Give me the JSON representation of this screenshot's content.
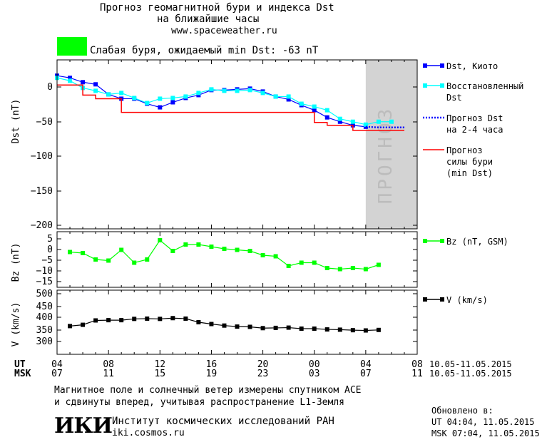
{
  "header": {
    "title_line1": "Прогноз геомагнитной бури и индекса Dst",
    "title_line2": "на ближайшие часы",
    "url": "www.spaceweather.ru",
    "status_color": "#00ff00",
    "status_text": "Слабая буря, ожидаемый min Dst: -63 nT"
  },
  "chart_data": [
    {
      "type": "line",
      "ylabel": "Dst (nT)",
      "ylim": [
        -200,
        35
      ],
      "yticks": [
        "0",
        "-50",
        "-100",
        "-150",
        "-200"
      ],
      "xlim": [
        4,
        32
      ],
      "forecast_shade": {
        "x_from": 28,
        "x_to": 32,
        "label": "ПРОГНОЗ",
        "color": "#d3d3d3"
      },
      "series": [
        {
          "name": "Dst, Киото",
          "color": "#0000ff",
          "marker": "square",
          "x": [
            4,
            5,
            6,
            7,
            8,
            9,
            10,
            11,
            12,
            13,
            14,
            15,
            16,
            17,
            18,
            19,
            20,
            21,
            22,
            23,
            24,
            25,
            26,
            27,
            28
          ],
          "y": [
            13,
            10,
            4,
            1,
            -13,
            -19,
            -19,
            -26,
            -31,
            -24,
            -18,
            -14,
            -7,
            -7,
            -6,
            -5,
            -9,
            -16,
            -20,
            -28,
            -35,
            -45,
            -51,
            -56,
            -58
          ]
        },
        {
          "name": "Восстановленный Dst",
          "color": "#00ffff",
          "marker": "square",
          "x": [
            4,
            5,
            6,
            7,
            8,
            9,
            10,
            11,
            12,
            13,
            14,
            15,
            16,
            17,
            18,
            19,
            20,
            21,
            22,
            23,
            24,
            25,
            26,
            27,
            28,
            29,
            30
          ],
          "y": [
            10,
            6,
            -4,
            -8,
            -13,
            -11,
            -18,
            -25,
            -19,
            -18,
            -16,
            -11,
            -6,
            -8,
            -8,
            -7,
            -11,
            -16,
            -16,
            -26,
            -30,
            -35,
            -47,
            -51,
            -55,
            -51,
            -51
          ]
        },
        {
          "name": "Прогноз Dst на 2-4 часа",
          "color": "#0000ff",
          "dashed": true,
          "x": [
            28,
            29,
            30,
            31
          ],
          "y": [
            -58,
            -59,
            -59,
            -59
          ]
        },
        {
          "name": "Прогноз силы бури (min Dst)",
          "color": "#ff0000",
          "step": true,
          "x": [
            4,
            5,
            6,
            7,
            8,
            9,
            10,
            11,
            12,
            13,
            14,
            15,
            16,
            17,
            18,
            19,
            20,
            21,
            22,
            23,
            24,
            25,
            26,
            27,
            28,
            29,
            30,
            31
          ],
          "y": [
            0,
            0,
            -14,
            -19,
            -19,
            -38,
            -38,
            -38,
            -38,
            -38,
            -38,
            -38,
            -38,
            -38,
            -38,
            -38,
            -38,
            -38,
            -38,
            -38,
            -52,
            -56,
            -56,
            -63,
            -63,
            -63,
            -63,
            -63
          ]
        }
      ]
    },
    {
      "type": "line",
      "ylabel": "Bz (nT)",
      "ylim": [
        -18,
        8
      ],
      "yticks": [
        "5",
        "0",
        "-5",
        "-10",
        "-15"
      ],
      "xlim": [
        4,
        32
      ],
      "series": [
        {
          "name": "Bz (nT, GSM)",
          "color": "#00ff00",
          "marker": "square",
          "x": [
            5,
            6,
            7,
            8,
            9,
            10,
            11,
            12,
            13,
            14,
            15,
            16,
            17,
            18,
            19,
            20,
            21,
            22,
            23,
            24,
            25,
            26,
            27,
            28,
            29
          ],
          "y": [
            -1.5,
            -2,
            -5,
            -5.5,
            -0.5,
            -6.5,
            -5,
            4,
            -1,
            2,
            2,
            1,
            0,
            -0.5,
            -1,
            -3,
            -3.5,
            -8,
            -6.5,
            -6.5,
            -9,
            -9.5,
            -9,
            -9.5,
            -7.5
          ]
        }
      ]
    },
    {
      "type": "line",
      "ylabel": "V (km/s)",
      "ylim": [
        260,
        510
      ],
      "yticks": [
        "500",
        "450",
        "400",
        "350",
        "300"
      ],
      "xlim": [
        4,
        32
      ],
      "x_ticks_ut": [
        "04",
        "08",
        "12",
        "16",
        "20",
        "00",
        "04",
        "08"
      ],
      "x_ticks_msk": [
        "07",
        "11",
        "15",
        "19",
        "23",
        "03",
        "07",
        "11"
      ],
      "x_axis_ut_label": "UT",
      "x_axis_msk_label": "MSK",
      "date_range": "10.05-11.05.2015",
      "series": [
        {
          "name": "V (km/s)",
          "color": "#000000",
          "marker": "square",
          "x": [
            5,
            6,
            7,
            8,
            9,
            10,
            11,
            12,
            13,
            14,
            15,
            16,
            17,
            18,
            19,
            20,
            21,
            22,
            23,
            24,
            25,
            26,
            27,
            28,
            29
          ],
          "y": [
            370,
            375,
            392,
            393,
            393,
            398,
            399,
            398,
            401,
            399,
            385,
            378,
            372,
            368,
            367,
            362,
            363,
            364,
            360,
            360,
            357,
            356,
            354,
            353,
            355
          ]
        }
      ]
    }
  ],
  "footer": {
    "note_line1": "Магнитное поле и солнечный ветер измерены спутником ACE",
    "note_line2": "и сдвинуты вперед, учитывая распространение L1-Земля",
    "logo_text": "ИКИ",
    "institute": "Институт космических исследований РАН",
    "site": "iki.cosmos.ru",
    "updated_label": "Обновлено в:",
    "updated_ut": "UT  04:04, 11.05.2015",
    "updated_msk": "MSK 07:04, 11.05.2015"
  }
}
